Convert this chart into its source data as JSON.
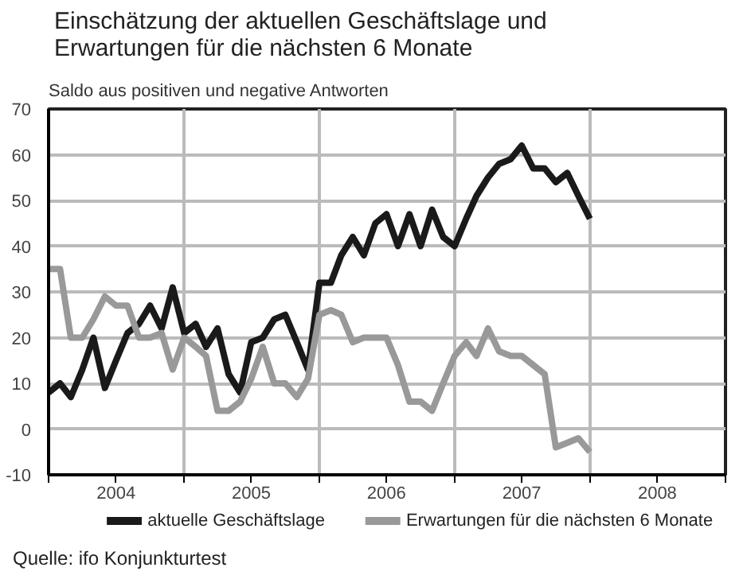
{
  "chart_data": {
    "type": "line",
    "title": "Einschätzung der aktuellen Geschäftslage und Erwartungen für die nächsten 6 Monate",
    "subtitle": "Saldo aus positiven und negative Antworten",
    "annotations": [
      "Quelle: ifo Konjunkturtest"
    ],
    "x": [
      "2004-01",
      "2004-02",
      "2004-03",
      "2004-04",
      "2004-05",
      "2004-06",
      "2004-07",
      "2004-08",
      "2004-09",
      "2004-10",
      "2004-11",
      "2004-12",
      "2005-01",
      "2005-02",
      "2005-03",
      "2005-04",
      "2005-05",
      "2005-06",
      "2005-07",
      "2005-08",
      "2005-09",
      "2005-10",
      "2005-11",
      "2005-12",
      "2006-01",
      "2006-02",
      "2006-03",
      "2006-04",
      "2006-05",
      "2006-06",
      "2006-07",
      "2006-08",
      "2006-09",
      "2006-10",
      "2006-11",
      "2006-12",
      "2007-01",
      "2007-02",
      "2007-03",
      "2007-04",
      "2007-05",
      "2007-06",
      "2007-07",
      "2007-08",
      "2007-09",
      "2007-10",
      "2007-11",
      "2007-12",
      "2008-01"
    ],
    "series": [
      {
        "name": "aktuelle Geschäftslage",
        "color": "#1a1a1a",
        "values": [
          8,
          10,
          7,
          13,
          20,
          9,
          15,
          21,
          23,
          27,
          22,
          31,
          21,
          23,
          18,
          22,
          12,
          8,
          19,
          20,
          24,
          25,
          19,
          13,
          32,
          32,
          38,
          42,
          38,
          45,
          47,
          40,
          47,
          40,
          48,
          42,
          40,
          46,
          51,
          55,
          58,
          59,
          62,
          57,
          57,
          54,
          56,
          51,
          46
        ]
      },
      {
        "name": "Erwartungen für die nächsten 6 Monate",
        "color": "#999999",
        "values": [
          35,
          35,
          20,
          20,
          24,
          29,
          27,
          27,
          20,
          20,
          21,
          13,
          20,
          18,
          16,
          4,
          4,
          6,
          11,
          18,
          10,
          10,
          7,
          11,
          25,
          26,
          25,
          19,
          20,
          20,
          20,
          14,
          6,
          6,
          4,
          10,
          16,
          19,
          16,
          22,
          17,
          16,
          16,
          14,
          12,
          -4,
          -3,
          -2,
          -5
        ]
      }
    ],
    "xlim": [
      "2004-01",
      "2009-01"
    ],
    "xticks": [
      {
        "value": "2004-01",
        "label": null
      },
      {
        "value": "2004-07",
        "label": "2004"
      },
      {
        "value": "2005-01",
        "label": null
      },
      {
        "value": "2005-07",
        "label": "2005"
      },
      {
        "value": "2006-01",
        "label": null
      },
      {
        "value": "2006-07",
        "label": "2006"
      },
      {
        "value": "2007-01",
        "label": null
      },
      {
        "value": "2007-07",
        "label": "2007"
      },
      {
        "value": "2008-01",
        "label": null
      },
      {
        "value": "2008-07",
        "label": "2008"
      },
      {
        "value": "2009-01",
        "label": null
      }
    ],
    "ylim": [
      -10,
      70
    ],
    "yticks": [
      -10,
      0,
      10,
      20,
      30,
      40,
      50,
      60,
      70
    ],
    "grid": true,
    "legend": "bottom",
    "line_style": "solid",
    "marker": "none"
  }
}
